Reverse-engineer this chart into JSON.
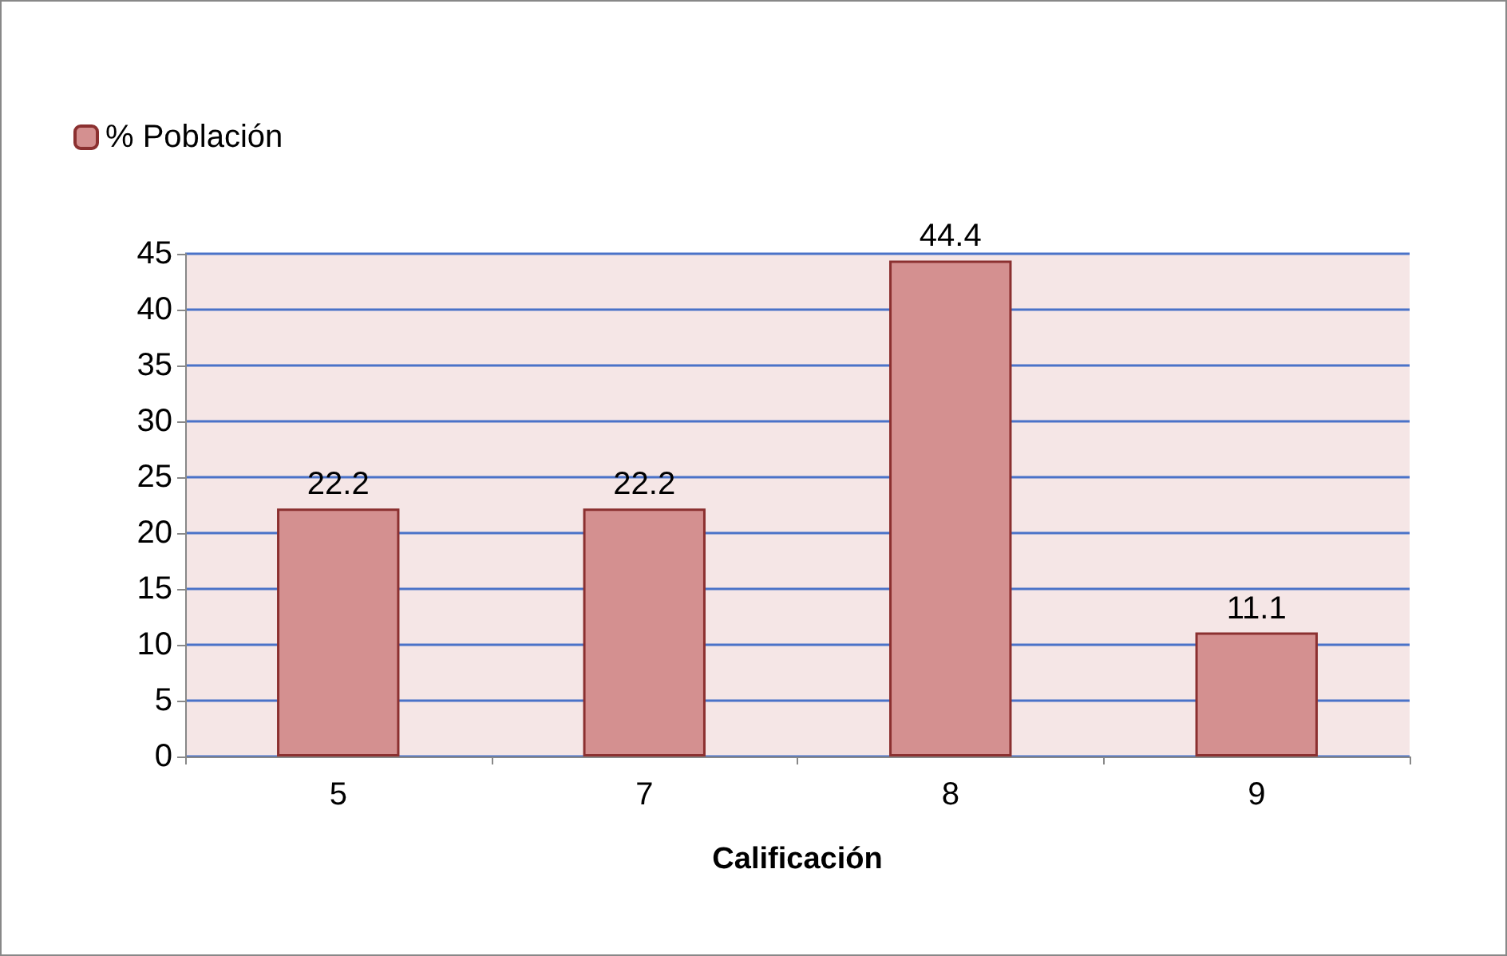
{
  "chart_data": {
    "type": "bar",
    "xlabel": "Calificación",
    "categories": [
      "5",
      "7",
      "8",
      "9"
    ],
    "series": [
      {
        "name": "% Población",
        "color": "#d49090",
        "values": [
          22.2,
          22.2,
          44.4,
          11.1
        ]
      }
    ],
    "ylim": [
      0,
      45
    ],
    "yticks": [
      0,
      5,
      10,
      15,
      20,
      25,
      30,
      35,
      40,
      45
    ],
    "grid": "y",
    "legend": "top left",
    "data_labels": true
  }
}
